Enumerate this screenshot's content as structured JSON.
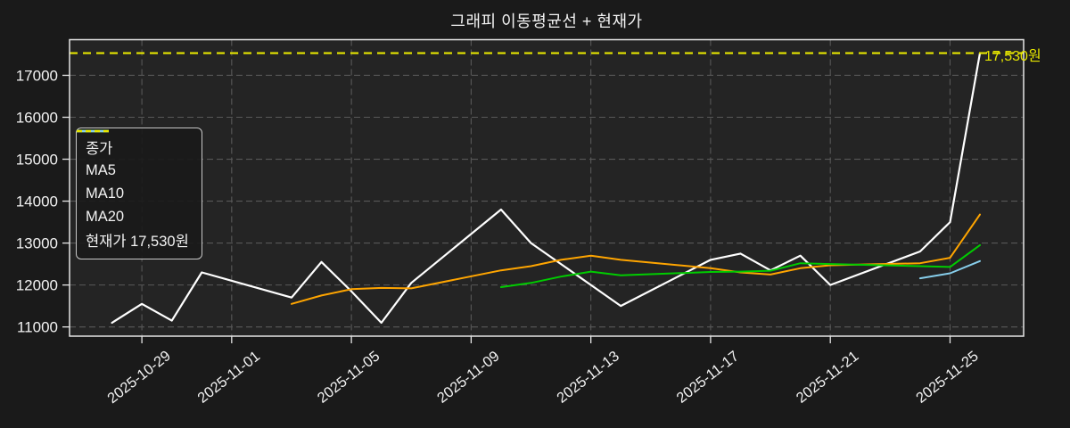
{
  "chart_data": {
    "type": "line",
    "title": "그래피 이동평균선 + 현재가",
    "x_domain": [
      "2025-10-26T14:00:00Z",
      "2025-11-27T11:00:00Z"
    ],
    "ylim": [
      10780,
      17850
    ],
    "y_ticks": [
      11000,
      12000,
      13000,
      14000,
      15000,
      16000,
      17000
    ],
    "x_ticks": [
      "2025-10-29",
      "2025-11-01",
      "2025-11-05",
      "2025-11-09",
      "2025-11-13",
      "2025-11-17",
      "2025-11-21",
      "2025-11-25"
    ],
    "grid": true,
    "background": {
      "figure": "#1a1a1a",
      "axes": "#242424",
      "gridline": "#585858",
      "border": "#e6e6e6",
      "tick_text": "#f2f2f2"
    },
    "legend": {
      "position": "upper-left",
      "items": [
        {
          "key": "close",
          "label": "종가",
          "color": "#ffffff",
          "dash": null
        },
        {
          "key": "ma5",
          "label": "MA5",
          "color": "#ffa500",
          "dash": null
        },
        {
          "key": "ma10",
          "label": "MA10",
          "color": "#00cc00",
          "dash": null
        },
        {
          "key": "ma20",
          "label": "MA20",
          "color": "#87ceeb",
          "dash": null
        },
        {
          "key": "current-price",
          "label": "현재가 17,530원",
          "color": "#e6e600",
          "dash": [
            6,
            4
          ]
        }
      ]
    },
    "series": [
      {
        "key": "close",
        "name": "종가",
        "color": "#ffffff",
        "width": 2.2,
        "dash": null,
        "dates": [
          "2025-10-28",
          "2025-10-29",
          "2025-10-30",
          "2025-10-31",
          "2025-11-03",
          "2025-11-04",
          "2025-11-05",
          "2025-11-06",
          "2025-11-07",
          "2025-11-10",
          "2025-11-11",
          "2025-11-12",
          "2025-11-13",
          "2025-11-14",
          "2025-11-17",
          "2025-11-18",
          "2025-11-19",
          "2025-11-20",
          "2025-11-21",
          "2025-11-24",
          "2025-11-25",
          "2025-11-26"
        ],
        "values": [
          11100,
          11550,
          11150,
          12300,
          11700,
          12550,
          11850,
          11100,
          12050,
          13800,
          13000,
          12500,
          12000,
          11500,
          12600,
          12750,
          12350,
          12700,
          12000,
          12800,
          13500,
          17530
        ]
      },
      {
        "key": "ma5",
        "name": "MA5",
        "color": "#ffa500",
        "width": 2,
        "dash": null,
        "dates": [
          "2025-11-03",
          "2025-11-04",
          "2025-11-05",
          "2025-11-06",
          "2025-11-07",
          "2025-11-10",
          "2025-11-11",
          "2025-11-12",
          "2025-11-13",
          "2025-11-14",
          "2025-11-17",
          "2025-11-18",
          "2025-11-19",
          "2025-11-20",
          "2025-11-21",
          "2025-11-24",
          "2025-11-25",
          "2025-11-26"
        ],
        "values": [
          11550,
          11750,
          11900,
          11930,
          11920,
          12350,
          12450,
          12600,
          12700,
          12600,
          12400,
          12300,
          12250,
          12400,
          12470,
          12520,
          12650,
          13680
        ]
      },
      {
        "key": "ma10",
        "name": "MA10",
        "color": "#00cc00",
        "width": 2,
        "dash": null,
        "dates": [
          "2025-11-10",
          "2025-11-11",
          "2025-11-12",
          "2025-11-13",
          "2025-11-14",
          "2025-11-17",
          "2025-11-18",
          "2025-11-19",
          "2025-11-20",
          "2025-11-21",
          "2025-11-24",
          "2025-11-25",
          "2025-11-26"
        ],
        "values": [
          11950,
          12050,
          12200,
          12320,
          12230,
          12310,
          12320,
          12340,
          12520,
          12500,
          12450,
          12430,
          12950
        ]
      },
      {
        "key": "ma20",
        "name": "MA20",
        "color": "#87ceeb",
        "width": 2,
        "dash": null,
        "dates": [
          "2025-11-24",
          "2025-11-25",
          "2025-11-26"
        ],
        "values": [
          12160,
          12280,
          12570
        ]
      }
    ],
    "hline": {
      "key": "current-price",
      "value": 17530,
      "color": "#e6e600",
      "width": 2.2,
      "dash": [
        9,
        6
      ],
      "annotation": "17,530원",
      "legend_label": "현재가 17,530원"
    }
  }
}
